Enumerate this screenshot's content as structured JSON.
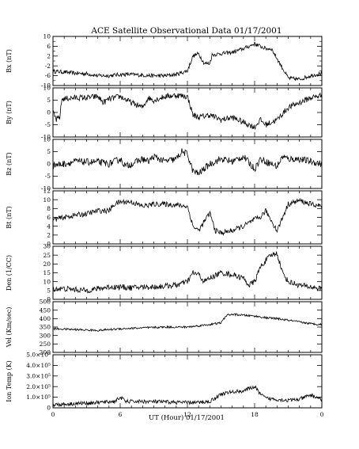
{
  "title": "ACE Satellite Observational Data  01/17/2001",
  "xlabel": "UT (Hour)  01/17/2001",
  "colors": {
    "line": "#000000",
    "background": "#ffffff"
  },
  "chart_data": [
    {
      "type": "line",
      "ylabel": "Bx (nT)",
      "ylim": [
        -10,
        10
      ],
      "yticks": [
        "10",
        "6",
        "2",
        "-2",
        "-6",
        "-10"
      ],
      "yticks_values": [
        10,
        6,
        2,
        -2,
        -6,
        -10
      ],
      "minor_yticks": [
        8,
        4,
        0,
        -4,
        -8
      ],
      "xlim": [
        0,
        24
      ],
      "xticks": [
        "0",
        "6",
        "12",
        "18",
        "0"
      ],
      "xticks_values": [
        0,
        6,
        12,
        18,
        24
      ],
      "noise": 0.8,
      "points": [
        [
          0,
          -4.2
        ],
        [
          1,
          -4.5
        ],
        [
          2,
          -5
        ],
        [
          3,
          -5.2
        ],
        [
          4,
          -6
        ],
        [
          5,
          -6
        ],
        [
          6,
          -5.5
        ],
        [
          7,
          -5.5
        ],
        [
          8,
          -5.8
        ],
        [
          9,
          -6
        ],
        [
          10,
          -6
        ],
        [
          11,
          -5.5
        ],
        [
          12,
          -4
        ],
        [
          12.5,
          2
        ],
        [
          13,
          3
        ],
        [
          13.5,
          -1
        ],
        [
          14,
          -1
        ],
        [
          14.2,
          2.5
        ],
        [
          15,
          3
        ],
        [
          16,
          3.5
        ],
        [
          17,
          5
        ],
        [
          18,
          7
        ],
        [
          18.5,
          6
        ],
        [
          19,
          5
        ],
        [
          19.5,
          5
        ],
        [
          20,
          1
        ],
        [
          21,
          -7
        ],
        [
          22,
          -7.5
        ],
        [
          23,
          -6
        ],
        [
          24,
          -5
        ]
      ]
    },
    {
      "type": "line",
      "ylabel": "By (nT)",
      "ylim": [
        -10,
        10
      ],
      "yticks": [
        "10",
        "5",
        "0",
        "-5",
        "-10"
      ],
      "yticks_values": [
        10,
        5,
        0,
        -5,
        -10
      ],
      "minor_yticks": [],
      "xlim": [
        0,
        24
      ],
      "xticks": [
        "0",
        "6",
        "12",
        "18",
        "0"
      ],
      "xticks_values": [
        0,
        6,
        12,
        18,
        24
      ],
      "noise": 1.2,
      "points": [
        [
          0,
          0
        ],
        [
          0.3,
          -3
        ],
        [
          0.6,
          -2
        ],
        [
          0.8,
          5.5
        ],
        [
          2,
          6
        ],
        [
          3,
          6
        ],
        [
          4,
          6.5
        ],
        [
          4.5,
          4
        ],
        [
          5,
          5.5
        ],
        [
          6,
          6.5
        ],
        [
          7,
          4
        ],
        [
          8,
          2
        ],
        [
          8.5,
          6
        ],
        [
          9,
          5
        ],
        [
          10,
          6.5
        ],
        [
          11,
          7
        ],
        [
          12,
          6.5
        ],
        [
          12.5,
          -1
        ],
        [
          13,
          -2
        ],
        [
          14,
          -1
        ],
        [
          15,
          -3
        ],
        [
          16,
          -2
        ],
        [
          17,
          -4
        ],
        [
          18,
          -6
        ],
        [
          18.5,
          -3
        ],
        [
          19,
          -5
        ],
        [
          20,
          -3
        ],
        [
          21,
          2
        ],
        [
          22,
          4
        ],
        [
          23,
          6
        ],
        [
          24,
          7
        ]
      ]
    },
    {
      "type": "line",
      "ylabel": "Bz (nT)",
      "ylim": [
        -10,
        10
      ],
      "yticks": [
        "10",
        "5",
        "0",
        "-5",
        "-10"
      ],
      "yticks_values": [
        10,
        5,
        0,
        -5,
        -10
      ],
      "minor_yticks": [],
      "xlim": [
        0,
        24
      ],
      "xticks": [
        "0",
        "6",
        "12",
        "18",
        "0"
      ],
      "xticks_values": [
        0,
        6,
        12,
        18,
        24
      ],
      "noise": 1.4,
      "points": [
        [
          0,
          -0.5
        ],
        [
          1,
          0
        ],
        [
          2,
          1
        ],
        [
          3,
          0.8
        ],
        [
          4,
          0.8
        ],
        [
          5,
          0
        ],
        [
          5.5,
          1
        ],
        [
          6,
          2
        ],
        [
          6.5,
          -1
        ],
        [
          7,
          0
        ],
        [
          8,
          2
        ],
        [
          8.5,
          1
        ],
        [
          9,
          3
        ],
        [
          10,
          1
        ],
        [
          11,
          2
        ],
        [
          11.5,
          5
        ],
        [
          12,
          4
        ],
        [
          12.5,
          -3
        ],
        [
          13,
          -4
        ],
        [
          14,
          0
        ],
        [
          15,
          2
        ],
        [
          16,
          1
        ],
        [
          17,
          3
        ],
        [
          18,
          -2
        ],
        [
          18.5,
          2
        ],
        [
          19,
          1
        ],
        [
          20,
          -1
        ],
        [
          20.5,
          3
        ],
        [
          21,
          2
        ],
        [
          22,
          2
        ],
        [
          23,
          1
        ],
        [
          24,
          0
        ]
      ]
    },
    {
      "type": "line",
      "ylabel": "Bt (nT)",
      "ylim": [
        0,
        12
      ],
      "yticks": [
        "12",
        "10",
        "8",
        "6",
        "4",
        "2",
        "0"
      ],
      "yticks_values": [
        12,
        10,
        8,
        6,
        4,
        2,
        0
      ],
      "minor_yticks": [],
      "xlim": [
        0,
        24
      ],
      "xticks": [
        "0",
        "6",
        "12",
        "18",
        "0"
      ],
      "xticks_values": [
        0,
        6,
        12,
        18,
        24
      ],
      "noise": 0.6,
      "points": [
        [
          0,
          5.5
        ],
        [
          1,
          6
        ],
        [
          2,
          6.5
        ],
        [
          3,
          6.8
        ],
        [
          4,
          7.5
        ],
        [
          5,
          7.5
        ],
        [
          5.5,
          9
        ],
        [
          6,
          9.5
        ],
        [
          7,
          9.5
        ],
        [
          8,
          8.5
        ],
        [
          9,
          9
        ],
        [
          10,
          9
        ],
        [
          11,
          8.8
        ],
        [
          12,
          8.5
        ],
        [
          12.5,
          4
        ],
        [
          13,
          3
        ],
        [
          13.5,
          5
        ],
        [
          14,
          7
        ],
        [
          14.5,
          3
        ],
        [
          15,
          2.5
        ],
        [
          16,
          3
        ],
        [
          17,
          4
        ],
        [
          18,
          5.5
        ],
        [
          18.5,
          6
        ],
        [
          19,
          7.5
        ],
        [
          20,
          3
        ],
        [
          20.5,
          6
        ],
        [
          21,
          9
        ],
        [
          22,
          9.8
        ],
        [
          23,
          9
        ],
        [
          24,
          8.5
        ]
      ]
    },
    {
      "type": "line",
      "ylabel": "Den (1/CC)",
      "ylim": [
        0,
        30
      ],
      "yticks": [
        "30",
        "25",
        "20",
        "15",
        "10",
        "5",
        "0"
      ],
      "yticks_values": [
        30,
        25,
        20,
        15,
        10,
        5,
        0
      ],
      "minor_yticks": [],
      "xlim": [
        0,
        24
      ],
      "xticks": [
        "0",
        "6",
        "12",
        "18",
        "0"
      ],
      "xticks_values": [
        0,
        6,
        12,
        18,
        24
      ],
      "noise": 1.6,
      "points": [
        [
          0,
          6
        ],
        [
          1,
          6
        ],
        [
          2,
          5.5
        ],
        [
          3,
          5
        ],
        [
          4,
          6
        ],
        [
          5,
          7
        ],
        [
          6,
          7
        ],
        [
          7,
          6.5
        ],
        [
          8,
          7
        ],
        [
          9,
          7
        ],
        [
          10,
          7.5
        ],
        [
          11,
          8
        ],
        [
          12,
          10
        ],
        [
          12.5,
          15
        ],
        [
          13,
          14
        ],
        [
          13.5,
          10
        ],
        [
          14,
          12
        ],
        [
          15,
          15
        ],
        [
          16,
          14
        ],
        [
          17,
          12
        ],
        [
          17.5,
          8
        ],
        [
          18,
          10
        ],
        [
          18.5,
          18
        ],
        [
          19,
          22
        ],
        [
          19.5,
          25
        ],
        [
          20,
          26
        ],
        [
          20.5,
          15
        ],
        [
          21,
          10
        ],
        [
          22,
          8
        ],
        [
          23,
          7
        ],
        [
          24,
          6
        ]
      ]
    },
    {
      "type": "line",
      "ylabel": "Vel (Km/sec)",
      "ylim": [
        200,
        500
      ],
      "yticks": [
        "500",
        "450",
        "400",
        "350",
        "300",
        "250",
        "200"
      ],
      "yticks_values": [
        500,
        450,
        400,
        350,
        300,
        250,
        200
      ],
      "minor_yticks": [],
      "xlim": [
        0,
        24
      ],
      "xticks": [
        "0",
        "6",
        "12",
        "18",
        "0"
      ],
      "xticks_values": [
        0,
        6,
        12,
        18,
        24
      ],
      "noise": 6,
      "points": [
        [
          0,
          340
        ],
        [
          2,
          335
        ],
        [
          4,
          330
        ],
        [
          6,
          340
        ],
        [
          8,
          345
        ],
        [
          10,
          350
        ],
        [
          12,
          350
        ],
        [
          14,
          365
        ],
        [
          15,
          375
        ],
        [
          15.5,
          420
        ],
        [
          16,
          425
        ],
        [
          17,
          420
        ],
        [
          18,
          415
        ],
        [
          19,
          405
        ],
        [
          20,
          400
        ],
        [
          21,
          390
        ],
        [
          22,
          380
        ],
        [
          23,
          370
        ],
        [
          24,
          365
        ]
      ]
    },
    {
      "type": "line",
      "ylabel": "Ion Temp (K)",
      "ylim": [
        0,
        500000
      ],
      "yticks": [
        "5.0×10⁵",
        "4.0×10⁵",
        "3.0×10⁵",
        "2.0×10⁵",
        "1.0×10⁵",
        "0"
      ],
      "yticks_values": [
        500000,
        400000,
        300000,
        200000,
        100000,
        0
      ],
      "minor_yticks": [],
      "xlim": [
        0,
        24
      ],
      "xticks": [
        "0",
        "6",
        "12",
        "18",
        "0"
      ],
      "xticks_values": [
        0,
        6,
        12,
        18,
        24
      ],
      "noise": 18000,
      "points": [
        [
          0,
          30000
        ],
        [
          2,
          40000
        ],
        [
          4,
          50000
        ],
        [
          5.5,
          60000
        ],
        [
          6,
          100000
        ],
        [
          6.5,
          60000
        ],
        [
          8,
          60000
        ],
        [
          10,
          55000
        ],
        [
          12,
          50000
        ],
        [
          13,
          50000
        ],
        [
          14,
          60000
        ],
        [
          15,
          130000
        ],
        [
          16,
          150000
        ],
        [
          17,
          160000
        ],
        [
          18,
          200000
        ],
        [
          18.5,
          130000
        ],
        [
          19,
          90000
        ],
        [
          20,
          80000
        ],
        [
          21,
          70000
        ],
        [
          22,
          80000
        ],
        [
          23,
          120000
        ],
        [
          24,
          80000
        ]
      ]
    }
  ]
}
